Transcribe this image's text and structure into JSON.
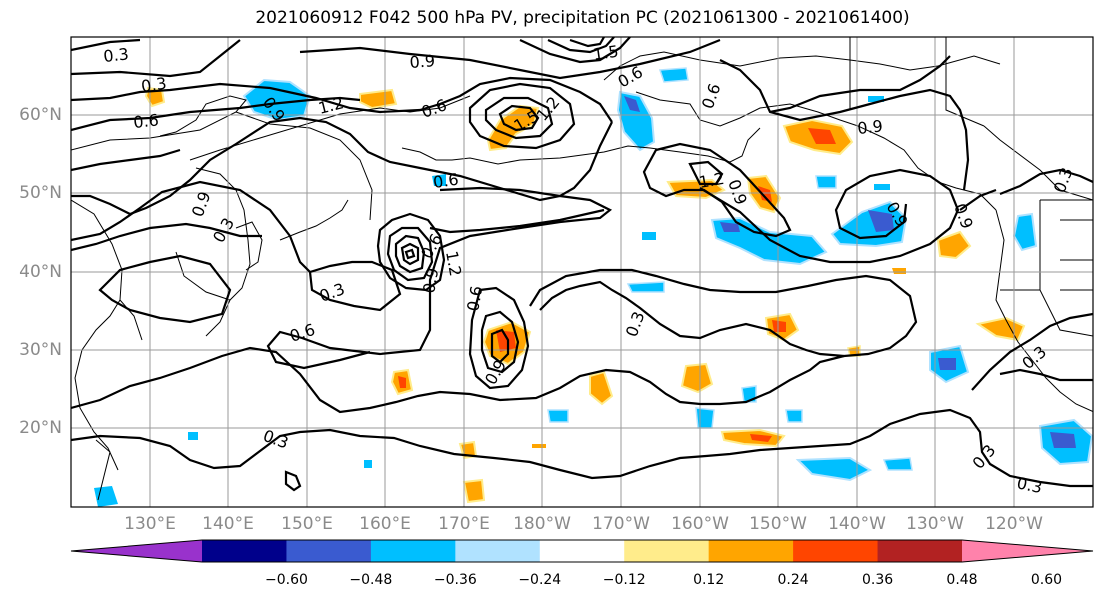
{
  "title": "2021060912 F042 500 hPa PV, precipitation PC (2021061300 - 2021061400)",
  "map": {
    "projection": "PlateCarree",
    "lon_range": [
      120,
      250
    ],
    "lat_range": [
      10,
      70
    ],
    "grid": true,
    "coastlines": true,
    "lat_labels": [
      "60°N",
      "50°N",
      "40°N",
      "30°N",
      "20°N"
    ],
    "lon_labels": [
      "130°E",
      "140°E",
      "150°E",
      "160°E",
      "170°E",
      "180°W",
      "170°W",
      "160°W",
      "150°W",
      "140°W",
      "130°W",
      "120°W"
    ],
    "pv_contour_levels": [
      0.3,
      0.6,
      0.9,
      1.2,
      1.5
    ],
    "contour_labels": [
      "0.3",
      "0.3",
      "0.6",
      "0.9",
      "1.2",
      "0.6",
      "0.6",
      "0.9",
      "1.5",
      "1.2",
      "1.5",
      "0.6",
      "0.6",
      "0.9",
      "1.2",
      "0.9",
      "0.9",
      "0.9",
      "0.3",
      "0.9",
      "0.6",
      "0.9",
      "1.2",
      "0.6",
      "0.3",
      "0.6",
      "0.3",
      "0.9",
      "0.3",
      "0.3",
      "0.3",
      "0.3",
      "0.3"
    ]
  },
  "colorbar": {
    "extend": "both",
    "boundaries": [
      -0.6,
      -0.48,
      -0.36,
      -0.24,
      -0.12,
      0.12,
      0.24,
      0.36,
      0.48,
      0.6
    ],
    "tick_labels": [
      "−0.60",
      "−0.48",
      "−0.36",
      "−0.24",
      "−0.12",
      "0.12",
      "0.24",
      "0.36",
      "0.48",
      "0.60"
    ],
    "colors": [
      "#9932cc",
      "#00008b",
      "#3a5bd0",
      "#00bfff",
      "#b0e2ff",
      "#ffffff",
      "#ffec8b",
      "#ffa500",
      "#ff4500",
      "#b22222",
      "#ff82ab"
    ]
  }
}
